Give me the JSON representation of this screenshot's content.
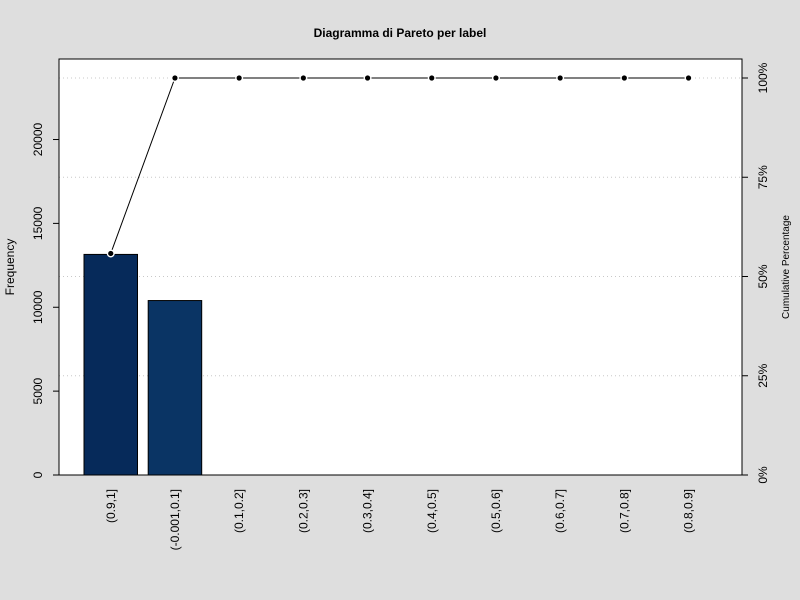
{
  "chart_data": {
    "type": "bar",
    "title": "Diagramma di Pareto per label",
    "ylabel": "Frequency",
    "ylabel_right": "Cumulative Percentage",
    "categories": [
      "(0.9,1]",
      "(-0.001,0.1]",
      "(0.1,0.2]",
      "(0.2,0.3]",
      "(0.3,0.4]",
      "(0.4,0.5]",
      "(0.5,0.6]",
      "(0.6,0.7]",
      "(0.7,0.8]",
      "(0.8,0.9]"
    ],
    "values": [
      13150,
      10400,
      0,
      0,
      0,
      0,
      0,
      0,
      0,
      0
    ],
    "cumulative_percent": [
      55.8,
      100,
      100,
      100,
      100,
      100,
      100,
      100,
      100,
      100
    ],
    "ylim": [
      0,
      24800
    ],
    "yticks": [
      0,
      5000,
      10000,
      15000,
      20000
    ],
    "yticks_right": [
      {
        "value": 0,
        "label": "0%"
      },
      {
        "value": 25,
        "label": "25%"
      },
      {
        "value": 50,
        "label": "50%"
      },
      {
        "value": 75,
        "label": "75%"
      },
      {
        "value": 100,
        "label": "100%"
      }
    ],
    "bar_colors": [
      "#062a5a",
      "#0a3464",
      "#0e3e70",
      "#12497c",
      "#165488",
      "#1a5f94",
      "#1e6aa0",
      "#2275ac",
      "#2680b8",
      "#2a8bc4"
    ],
    "grid": "horizontal dotted at right-axis ticks",
    "background": "#dedede",
    "plot_background": "#ffffff"
  }
}
